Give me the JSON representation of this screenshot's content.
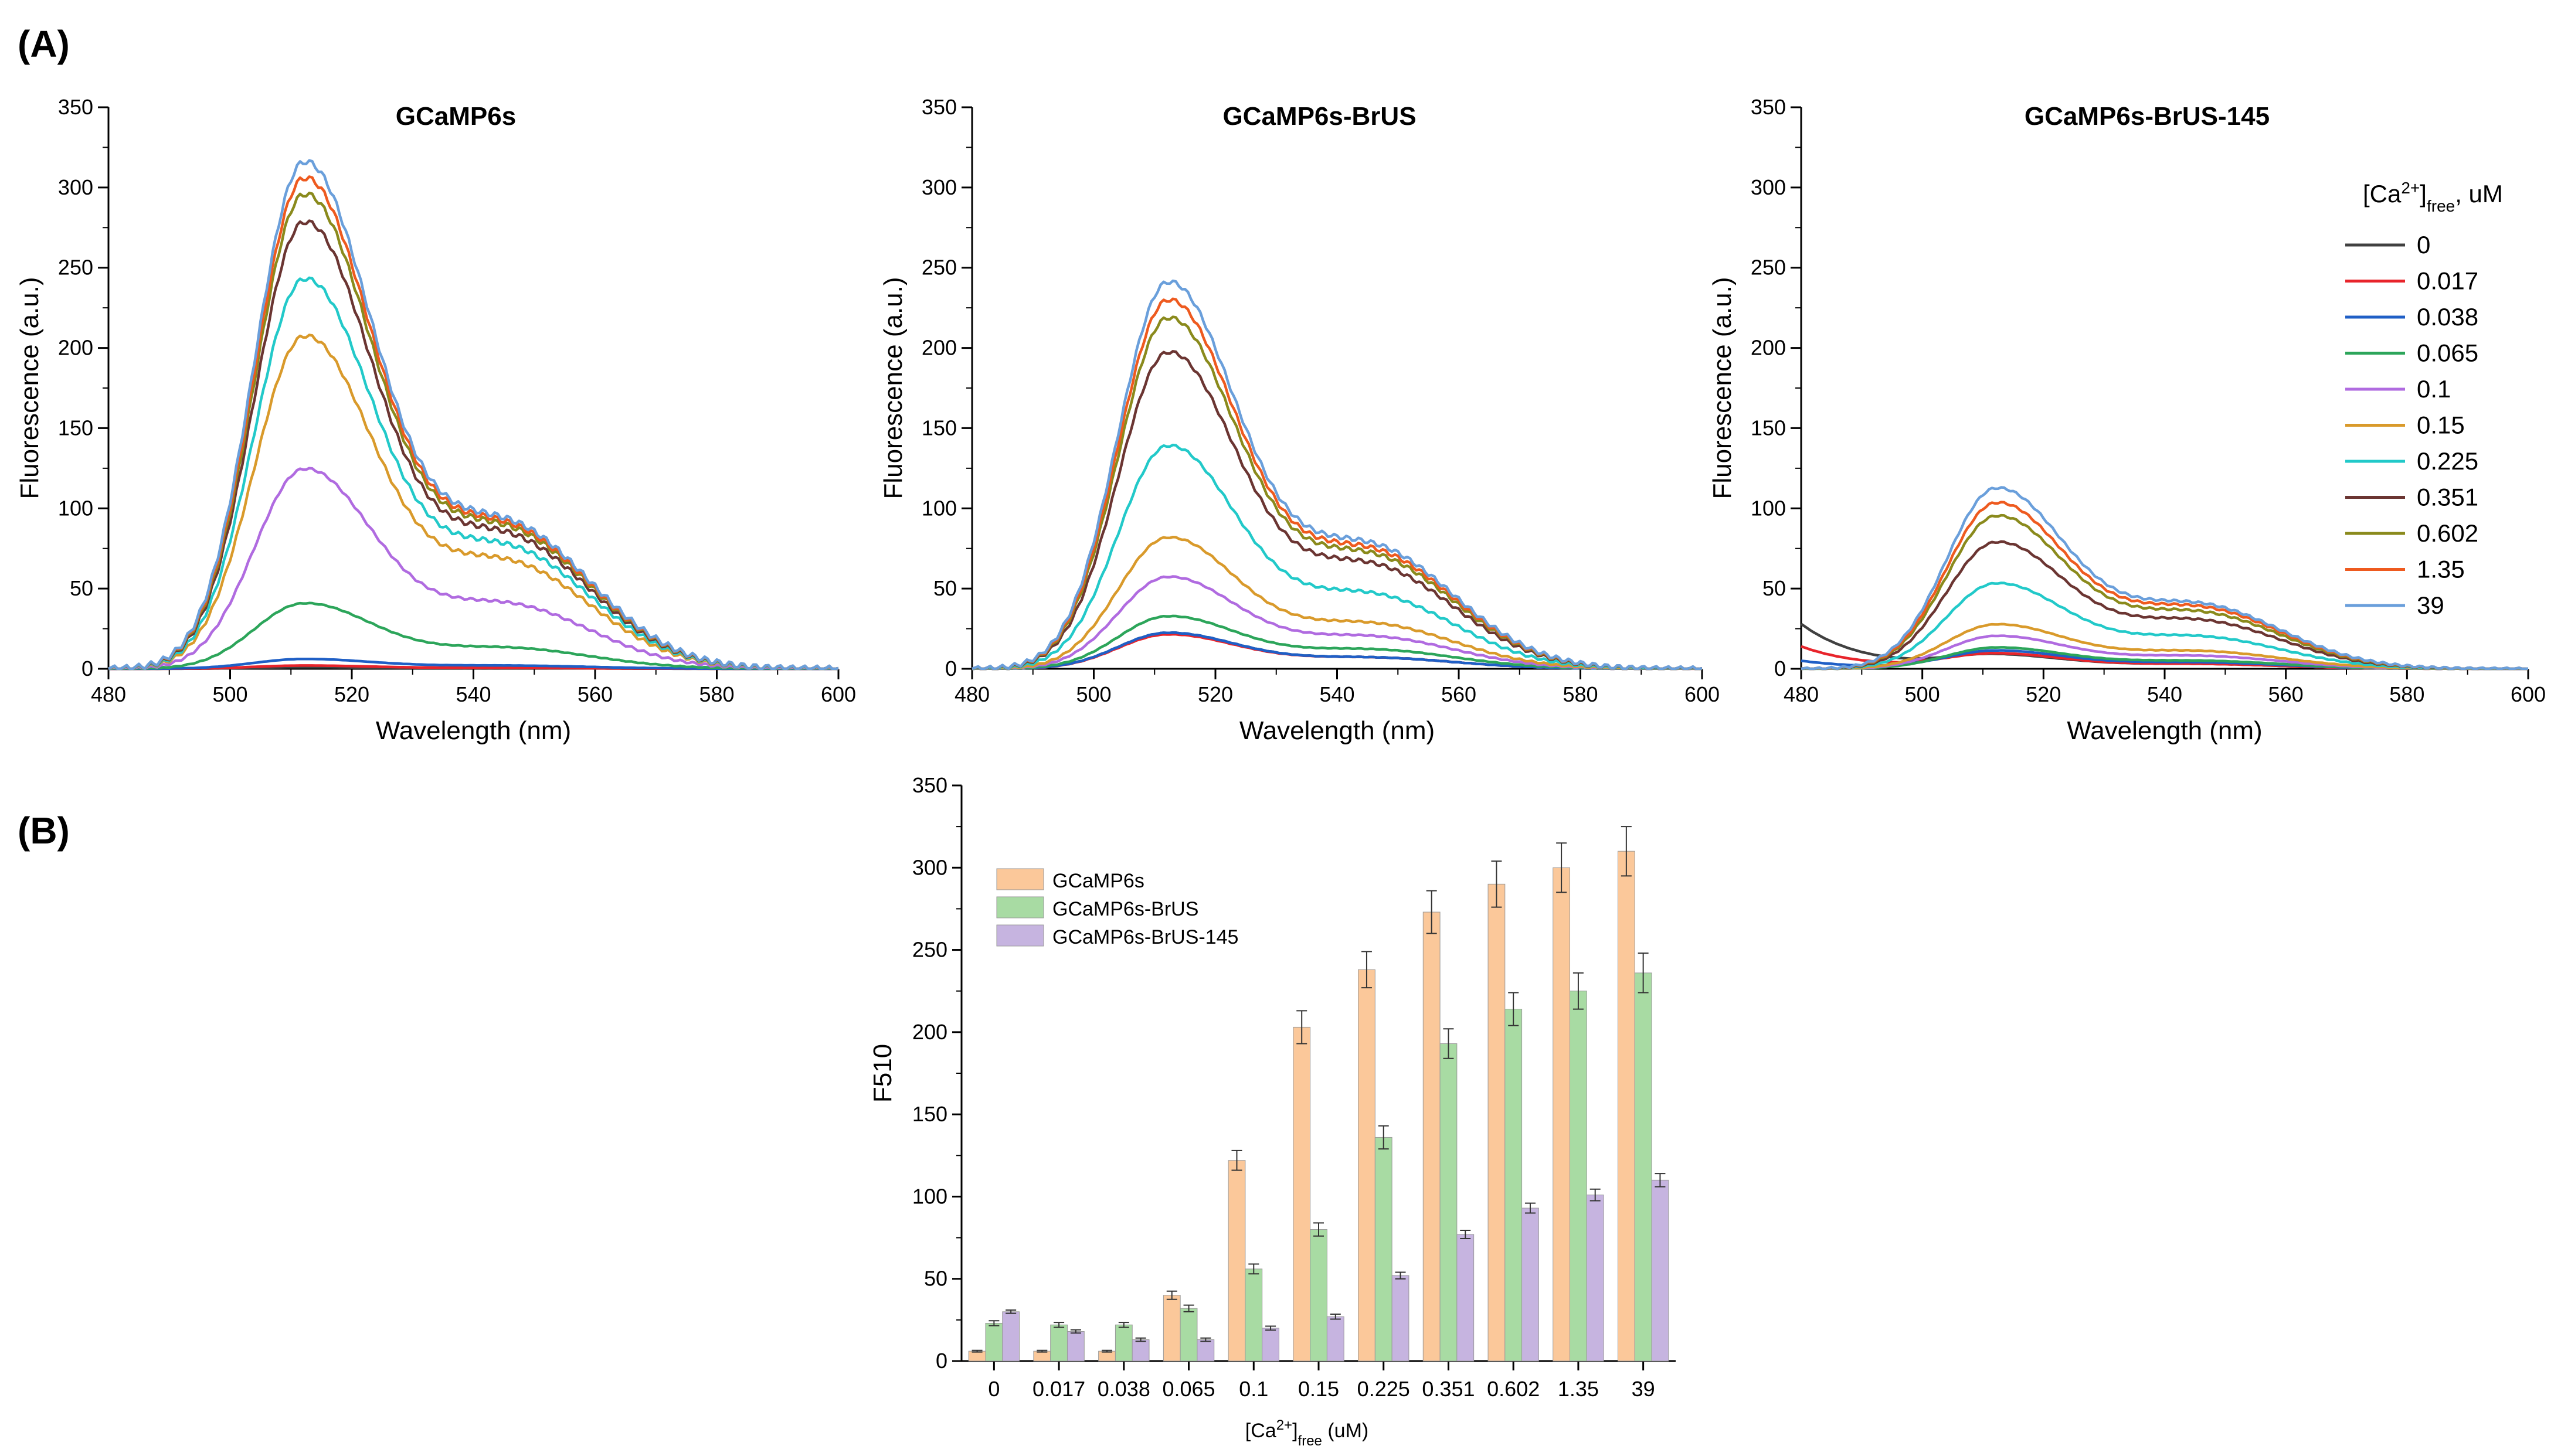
{
  "panel_labels": {
    "a": "(A)",
    "b": "(B)"
  },
  "legend": {
    "title_main": "[Ca",
    "title_sup": "2+",
    "title_close": "]",
    "title_sub": "free",
    "title_unit": ", uM",
    "series_colors": [
      "#404040",
      "#e8242b",
      "#1f5fc6",
      "#2ca55a",
      "#b06be0",
      "#d99a2b",
      "#22c9c9",
      "#6b3532",
      "#8a8a1c",
      "#ee5a1f",
      "#6a9fdb"
    ]
  },
  "chart_data": [
    {
      "type": "line",
      "title": "GCaMP6s",
      "xlabel": "Wavelength (nm)",
      "ylabel": "Fluorescence (a.u.)",
      "xlim": [
        480,
        600
      ],
      "ylim": [
        0,
        350
      ],
      "xticks": [
        "480",
        "500",
        "520",
        "540",
        "560",
        "580",
        "600"
      ],
      "yticks": [
        "0",
        "50",
        "100",
        "150",
        "200",
        "250",
        "300",
        "350"
      ],
      "series": [
        {
          "name": "0",
          "peak": 1,
          "shoulder": 0.4,
          "tail_start": 0
        },
        {
          "name": "0.017",
          "peak": 2,
          "shoulder": 0.6,
          "tail_start": 0
        },
        {
          "name": "0.038",
          "peak": 6,
          "shoulder": 2,
          "tail_start": 0
        },
        {
          "name": "0.065",
          "peak": 40,
          "shoulder": 13,
          "tail_start": 0
        },
        {
          "name": "0.1",
          "peak": 122,
          "shoulder": 40,
          "tail_start": 0
        },
        {
          "name": "0.15",
          "peak": 203,
          "shoulder": 66,
          "tail_start": 0
        },
        {
          "name": "0.225",
          "peak": 238,
          "shoulder": 75,
          "tail_start": 0
        },
        {
          "name": "0.351",
          "peak": 273,
          "shoulder": 82,
          "tail_start": 0
        },
        {
          "name": "0.602",
          "peak": 290,
          "shoulder": 86,
          "tail_start": 0
        },
        {
          "name": "1.35",
          "peak": 300,
          "shoulder": 88,
          "tail_start": 0
        },
        {
          "name": "39",
          "peak": 310,
          "shoulder": 90,
          "tail_start": 0
        }
      ]
    },
    {
      "type": "line",
      "title": "GCaMP6s-BrUS",
      "xlabel": "Wavelength (nm)",
      "ylabel": "Fluorescence (a.u.)",
      "xlim": [
        480,
        600
      ],
      "ylim": [
        0,
        350
      ],
      "xticks": [
        "480",
        "500",
        "520",
        "540",
        "560",
        "580",
        "600"
      ],
      "yticks": [
        "0",
        "50",
        "100",
        "150",
        "200",
        "250",
        "300",
        "350"
      ],
      "series": [
        {
          "name": "0",
          "peak": 22,
          "shoulder": 7,
          "tail_start": 0
        },
        {
          "name": "0.017",
          "peak": 21,
          "shoulder": 7,
          "tail_start": 0
        },
        {
          "name": "0.038",
          "peak": 22,
          "shoulder": 7,
          "tail_start": 0
        },
        {
          "name": "0.065",
          "peak": 32,
          "shoulder": 12,
          "tail_start": 0
        },
        {
          "name": "0.1",
          "peak": 56,
          "shoulder": 20,
          "tail_start": 0
        },
        {
          "name": "0.15",
          "peak": 80,
          "shoulder": 28,
          "tail_start": 0
        },
        {
          "name": "0.225",
          "peak": 136,
          "shoulder": 46,
          "tail_start": 0
        },
        {
          "name": "0.351",
          "peak": 193,
          "shoulder": 64,
          "tail_start": 0
        },
        {
          "name": "0.602",
          "peak": 214,
          "shoulder": 70,
          "tail_start": 0
        },
        {
          "name": "1.35",
          "peak": 225,
          "shoulder": 73,
          "tail_start": 0
        },
        {
          "name": "39",
          "peak": 236,
          "shoulder": 76,
          "tail_start": 0
        }
      ]
    },
    {
      "type": "line",
      "title": "GCaMP6s-BrUS-145",
      "xlabel": "Wavelength (nm)",
      "ylabel": "Fluorescence (a.u.)",
      "xlim": [
        480,
        600
      ],
      "ylim": [
        0,
        350
      ],
      "xticks": [
        "480",
        "500",
        "520",
        "540",
        "560",
        "580",
        "600"
      ],
      "yticks": [
        "0",
        "50",
        "100",
        "150",
        "200",
        "250",
        "300",
        "350"
      ],
      "series": [
        {
          "name": "0",
          "peak": 8,
          "shoulder": 3,
          "tail_start": 28
        },
        {
          "name": "0.017",
          "peak": 9,
          "shoulder": 3,
          "tail_start": 14
        },
        {
          "name": "0.038",
          "peak": 11,
          "shoulder": 4,
          "tail_start": 5
        },
        {
          "name": "0.065",
          "peak": 13,
          "shoulder": 5,
          "tail_start": 0
        },
        {
          "name": "0.1",
          "peak": 20,
          "shoulder": 8,
          "tail_start": 0
        },
        {
          "name": "0.15",
          "peak": 27,
          "shoulder": 11,
          "tail_start": 0
        },
        {
          "name": "0.225",
          "peak": 52,
          "shoulder": 20,
          "tail_start": 0
        },
        {
          "name": "0.351",
          "peak": 77,
          "shoulder": 30,
          "tail_start": 0
        },
        {
          "name": "0.602",
          "peak": 93,
          "shoulder": 35,
          "tail_start": 0
        },
        {
          "name": "1.35",
          "peak": 101,
          "shoulder": 38,
          "tail_start": 0
        },
        {
          "name": "39",
          "peak": 110,
          "shoulder": 40,
          "tail_start": 0
        }
      ]
    },
    {
      "type": "bar",
      "title": "",
      "ylabel": "F510",
      "xlabel_main": "[Ca",
      "xlabel_sup": "2+",
      "xlabel_close": "]",
      "xlabel_sub": "free",
      "xlabel_unit": " (uM)",
      "ylim": [
        0,
        350
      ],
      "yticks": [
        "0",
        "50",
        "100",
        "150",
        "200",
        "250",
        "300",
        "350"
      ],
      "categories": [
        "0",
        "0.017",
        "0.038",
        "0.065",
        "0.1",
        "0.15",
        "0.225",
        "0.351",
        "0.602",
        "1.35",
        "39"
      ],
      "series": [
        {
          "name": "GCaMP6s",
          "color": "#fbc89a",
          "values": [
            6,
            6,
            6,
            40,
            122,
            203,
            238,
            273,
            290,
            300,
            310
          ],
          "errors": [
            0.5,
            0.5,
            0.5,
            2.5,
            6,
            10,
            11,
            13,
            14,
            15,
            15
          ]
        },
        {
          "name": "GCaMP6s-BrUS",
          "color": "#a8dba3",
          "values": [
            23,
            22,
            22,
            32,
            56,
            80,
            136,
            193,
            214,
            225,
            236
          ],
          "errors": [
            1.5,
            1.5,
            1.5,
            2,
            3,
            4,
            7,
            9,
            10,
            11,
            12
          ]
        },
        {
          "name": "GCaMP6s-BrUS-145",
          "color": "#c6b4e0",
          "values": [
            30,
            18,
            13,
            13,
            20,
            27,
            52,
            77,
            93,
            101,
            110
          ],
          "errors": [
            1,
            1,
            1,
            1,
            1.2,
            1.5,
            2,
            2.5,
            3,
            3.5,
            4
          ]
        }
      ]
    }
  ]
}
